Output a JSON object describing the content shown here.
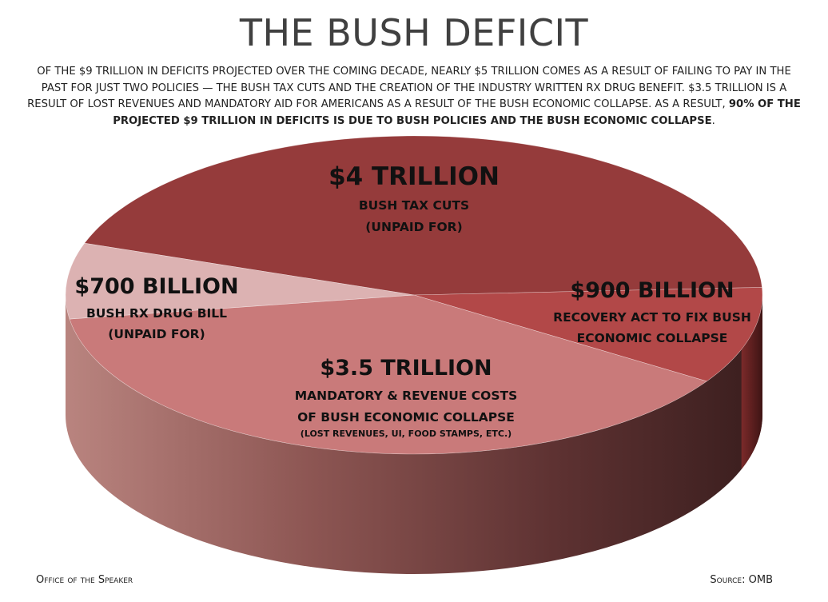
{
  "header": {
    "title": "THE BUSH DEFICIT",
    "subtitle_part1": "OF THE $9 TRILLION IN DEFICITS PROJECTED OVER THE COMING DECADE, NEARLY $5 TRILLION COMES AS A RESULT OF FAILING TO PAY IN THE PAST FOR JUST TWO POLICIES — THE BUSH TAX CUTS AND THE CREATION OF THE INDUSTRY WRITTEN RX DRUG BENEFIT.  $3.5 TRILLION IS A RESULT OF LOST REVENUES AND MANDATORY AID FOR AMERICANS AS A RESULT OF THE BUSH ECONOMIC COLLAPSE. AS A RESULT, ",
    "subtitle_bold": "90% OF THE PROJECTED $9 TRILLION IN DEFICITS IS DUE TO BUSH POLICIES AND THE BUSH ECONOMIC COLLAPSE",
    "subtitle_end": "."
  },
  "chart_data": {
    "type": "pie",
    "title": "THE BUSH DEFICIT",
    "unit": "trillion USD",
    "slices": [
      {
        "name": "BUSH TAX CUTS (UNPAID FOR)",
        "value": 4.0,
        "value_label": "$4 TRILLION",
        "desc_lines": [
          "BUSH TAX CUTS",
          "(UNPAID FOR)"
        ],
        "note": "",
        "color": "#953b3b"
      },
      {
        "name": "RECOVERY ACT TO FIX BUSH ECONOMIC COLLAPSE",
        "value": 0.9,
        "value_label": "$900 BILLION",
        "desc_lines": [
          "RECOVERY ACT TO FIX BUSH",
          "ECONOMIC COLLAPSE"
        ],
        "note": "",
        "color": "#b24848"
      },
      {
        "name": "MANDATORY & REVENUE COSTS OF BUSH ECONOMIC COLLAPSE",
        "value": 3.5,
        "value_label": "$3.5 TRILLION",
        "desc_lines": [
          "MANDATORY & REVENUE COSTS",
          "OF BUSH ECONOMIC COLLAPSE"
        ],
        "note": "(LOST REVENUES, UI, FOOD STAMPS, ETC.)",
        "color": "#c97a7a"
      },
      {
        "name": "BUSH RX DRUG BILL (UNPAID FOR)",
        "value": 0.7,
        "value_label": "$700 BILLION",
        "desc_lines": [
          "BUSH RX DRUG BILL",
          "(UNPAID FOR)"
        ],
        "note": "",
        "color": "#dcb2b2"
      }
    ]
  },
  "footer": {
    "left": "Office of the Speaker",
    "right": "Source: OMB"
  }
}
